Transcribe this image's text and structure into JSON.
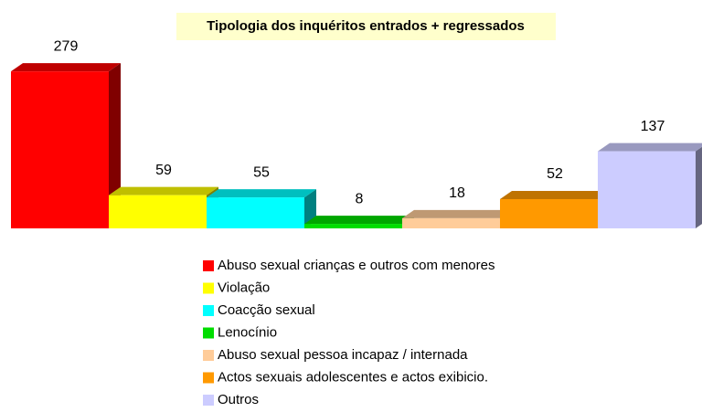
{
  "chart_data": {
    "type": "bar",
    "title": "Tipologia dos inquéritos entrados + regressados",
    "series": [
      {
        "name": "Abuso sexual crianças e outros com menores",
        "color": "#ff0000",
        "values": [
          279
        ]
      },
      {
        "name": "Violação",
        "color": "#ffff00",
        "values": [
          59
        ]
      },
      {
        "name": "Coacção sexual",
        "color": "#00ffff",
        "values": [
          55
        ]
      },
      {
        "name": "Lenocínio",
        "color": "#00dd00",
        "values": [
          8
        ]
      },
      {
        "name": "Abuso sexual pessoa incapaz / internada",
        "color": "#ffcc99",
        "values": [
          18
        ]
      },
      {
        "name": "Actos sexuais adolescentes e actos exibicio.",
        "color": "#ff9900",
        "values": [
          52
        ]
      },
      {
        "name": "Outros",
        "color": "#ccccff",
        "values": [
          137
        ]
      }
    ]
  }
}
